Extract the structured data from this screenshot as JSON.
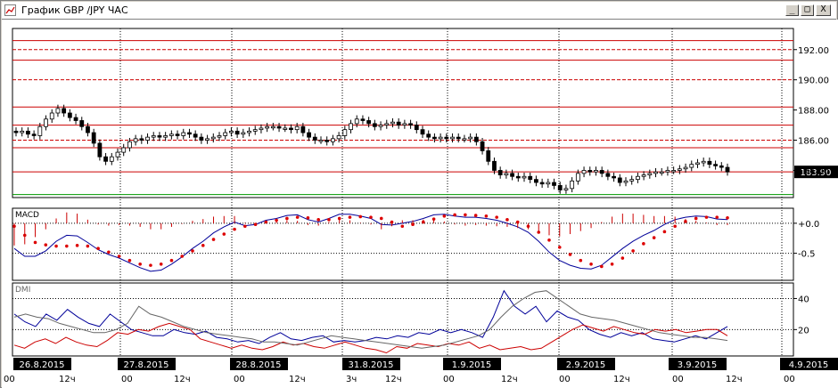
{
  "window": {
    "title": "График GBP /JPY ЧАС",
    "min_label": "_",
    "max_label": "□",
    "close_label": "X"
  },
  "chart_data": [
    {
      "type": "candlestick",
      "panel": "price",
      "ylim": [
        182.2,
        193.4
      ],
      "y_ticks": [
        192,
        190,
        188,
        186,
        184
      ],
      "y_tick_labels": [
        "192.00",
        "190.00",
        "188.00",
        "186.00",
        "184.00"
      ],
      "current_price": 183.9,
      "current_price_label": "183.90",
      "horizontal_levels": [
        {
          "value": 192.6,
          "color": "#cc0000",
          "style": "solid"
        },
        {
          "value": 192.0,
          "color": "#cc0000",
          "style": "dashed"
        },
        {
          "value": 191.3,
          "color": "#cc0000",
          "style": "solid"
        },
        {
          "value": 190.0,
          "color": "#cc0000",
          "style": "dashed"
        },
        {
          "value": 188.2,
          "color": "#cc0000",
          "style": "solid"
        },
        {
          "value": 187.0,
          "color": "#cc0000",
          "style": "solid"
        },
        {
          "value": 186.0,
          "color": "#cc0000",
          "style": "dashed"
        },
        {
          "value": 185.5,
          "color": "#cc0000",
          "style": "solid"
        },
        {
          "value": 183.9,
          "color": "#cc0000",
          "style": "solid"
        },
        {
          "value": 182.4,
          "color": "#009900",
          "style": "solid"
        }
      ],
      "close": [
        186.5,
        186.6,
        186.4,
        186.3,
        186.9,
        187.4,
        187.8,
        188.1,
        187.8,
        187.5,
        187.3,
        186.9,
        186.5,
        185.8,
        184.9,
        184.6,
        184.9,
        185.2,
        185.5,
        185.9,
        186.1,
        186.0,
        186.2,
        186.3,
        186.2,
        186.3,
        186.4,
        186.3,
        186.5,
        186.4,
        186.2,
        186.0,
        186.1,
        186.2,
        186.3,
        186.5,
        186.6,
        186.4,
        186.5,
        186.6,
        186.7,
        186.8,
        186.9,
        186.9,
        186.8,
        186.8,
        186.7,
        186.9,
        186.5,
        186.2,
        186.0,
        186.0,
        185.9,
        186.1,
        186.3,
        186.7,
        187.1,
        187.4,
        187.3,
        187.1,
        186.9,
        187.0,
        187.1,
        187.2,
        187.0,
        187.1,
        187.0,
        186.7,
        186.4,
        186.2,
        186.1,
        186.2,
        186.1,
        186.2,
        186.1,
        186.1,
        186.2,
        185.9,
        185.3,
        184.6,
        184.0,
        183.7,
        183.8,
        183.6,
        183.5,
        183.6,
        183.4,
        183.2,
        183.1,
        183.2,
        183.0,
        182.7,
        182.8,
        183.3,
        183.8,
        184.0,
        183.9,
        184.0,
        183.8,
        183.6,
        183.5,
        183.2,
        183.3,
        183.4,
        183.6,
        183.7,
        183.8,
        183.9,
        183.9,
        184.0,
        184.0,
        184.1,
        184.2,
        184.4,
        184.5,
        184.6,
        184.4,
        184.3,
        184.2,
        183.9
      ],
      "high_offset": 0.25,
      "low_offset": 0.25
    },
    {
      "type": "line",
      "panel": "macd",
      "title": "MACD",
      "ylim": [
        -0.95,
        0.25
      ],
      "y_ticks": [
        0.0,
        -0.5
      ],
      "y_tick_labels": [
        "+0.0",
        "-0.5"
      ],
      "series": [
        {
          "name": "",
          "color": "#000099",
          "style": "line",
          "values": [
            -0.42,
            -0.55,
            -0.55,
            -0.46,
            -0.3,
            -0.2,
            -0.21,
            -0.32,
            -0.44,
            -0.52,
            -0.58,
            -0.66,
            -0.74,
            -0.8,
            -0.78,
            -0.68,
            -0.56,
            -0.42,
            -0.3,
            -0.16,
            -0.06,
            0.02,
            -0.04,
            -0.02,
            0.05,
            0.08,
            0.13,
            0.14,
            0.06,
            0.02,
            0.08,
            0.15,
            0.15,
            0.12,
            0.08,
            -0.02,
            -0.03,
            0.0,
            0.03,
            0.08,
            0.14,
            0.15,
            0.12,
            0.1,
            0.1,
            0.08,
            0.05,
            0.0,
            -0.06,
            -0.15,
            -0.3,
            -0.48,
            -0.62,
            -0.7,
            -0.75,
            -0.76,
            -0.7,
            -0.56,
            -0.42,
            -0.3,
            -0.2,
            -0.12,
            -0.02,
            0.06,
            0.1,
            0.12,
            0.11,
            0.07,
            0.06
          ]
        },
        {
          "name": "",
          "color": "#dd0000",
          "style": "dotted",
          "values": [
            -0.05,
            -0.2,
            -0.32,
            -0.36,
            -0.38,
            -0.38,
            -0.37,
            -0.38,
            -0.42,
            -0.48,
            -0.55,
            -0.62,
            -0.68,
            -0.7,
            -0.68,
            -0.62,
            -0.55,
            -0.46,
            -0.37,
            -0.27,
            -0.18,
            -0.1,
            -0.05,
            -0.02,
            0.02,
            0.05,
            0.08,
            0.1,
            0.09,
            0.06,
            0.06,
            0.08,
            0.1,
            0.11,
            0.1,
            0.08,
            0.02,
            -0.05,
            -0.02,
            0.02,
            0.07,
            0.12,
            0.14,
            0.14,
            0.13,
            0.12,
            0.1,
            0.06,
            0.02,
            -0.05,
            -0.15,
            -0.28,
            -0.4,
            -0.52,
            -0.62,
            -0.68,
            -0.72,
            -0.68,
            -0.58,
            -0.46,
            -0.34,
            -0.24,
            -0.14,
            -0.05,
            0.03,
            0.08,
            0.1,
            0.1,
            0.09
          ]
        },
        {
          "name": "",
          "color": "#cc0000",
          "style": "histogram",
          "values": [
            -0.37,
            -0.35,
            -0.23,
            -0.1,
            0.08,
            0.18,
            0.16,
            0.06,
            -0.02,
            -0.04,
            -0.03,
            -0.04,
            -0.06,
            -0.1,
            -0.1,
            -0.06,
            -0.01,
            0.04,
            0.07,
            0.11,
            0.12,
            0.12,
            0.01,
            0.0,
            0.03,
            0.03,
            0.05,
            0.04,
            -0.03,
            -0.04,
            0.02,
            0.07,
            0.05,
            0.01,
            -0.02,
            -0.1,
            -0.05,
            0.05,
            0.05,
            0.06,
            0.07,
            0.03,
            -0.02,
            -0.04,
            -0.03,
            -0.04,
            -0.05,
            -0.06,
            -0.08,
            -0.1,
            -0.15,
            -0.2,
            -0.22,
            -0.18,
            -0.13,
            -0.08,
            0.02,
            0.11,
            0.16,
            0.16,
            0.14,
            0.12,
            0.12,
            0.11,
            0.07,
            0.04,
            0.01,
            -0.03,
            -0.03
          ]
        }
      ]
    },
    {
      "type": "line",
      "panel": "dmi",
      "title": "DMI",
      "ylim": [
        3,
        50
      ],
      "y_ticks": [
        40,
        20
      ],
      "y_tick_labels": [
        "40",
        "20"
      ],
      "series": [
        {
          "name": "",
          "color": "#000099",
          "values": [
            30,
            25,
            22,
            30,
            26,
            33,
            28,
            24,
            22,
            30,
            25,
            20,
            18,
            16,
            16,
            20,
            18,
            17,
            19,
            15,
            14,
            12,
            13,
            11,
            15,
            18,
            14,
            13,
            15,
            16,
            12,
            13,
            12,
            13,
            15,
            14,
            16,
            15,
            18,
            17,
            20,
            18,
            20,
            18,
            15,
            28,
            45,
            35,
            30,
            35,
            25,
            32,
            28,
            26,
            20,
            17,
            15,
            18,
            16,
            18,
            14,
            13,
            12,
            14,
            16,
            14,
            18,
            22
          ]
        },
        {
          "name": "",
          "color": "#cc0000",
          "values": [
            10,
            8,
            12,
            14,
            11,
            15,
            12,
            10,
            9,
            13,
            18,
            17,
            20,
            19,
            22,
            24,
            22,
            20,
            14,
            12,
            10,
            8,
            10,
            8,
            7,
            9,
            12,
            10,
            11,
            9,
            8,
            10,
            12,
            10,
            8,
            7,
            5,
            9,
            8,
            11,
            10,
            9,
            11,
            10,
            12,
            8,
            10,
            7,
            8,
            9,
            7,
            8,
            12,
            16,
            20,
            23,
            21,
            19,
            22,
            20,
            18,
            17,
            20,
            19,
            20,
            18,
            19,
            20,
            20,
            16
          ]
        },
        {
          "name": "",
          "color": "#666666",
          "values": [
            28,
            30,
            28,
            27,
            24,
            22,
            20,
            18,
            18,
            20,
            24,
            35,
            30,
            28,
            25,
            22,
            20,
            18,
            17,
            16,
            15,
            14,
            12,
            12,
            11,
            10,
            12,
            14,
            16,
            15,
            14,
            13,
            12,
            11,
            10,
            9,
            8,
            9,
            10,
            12,
            14,
            16,
            20,
            28,
            35,
            40,
            44,
            45,
            40,
            35,
            30,
            28,
            27,
            26,
            24,
            22,
            20,
            18,
            17,
            16,
            15,
            15,
            14,
            13
          ]
        }
      ]
    }
  ],
  "time_axis": {
    "date_labels": [
      "26.8.2015",
      "27.8.2015",
      "28.8.2015",
      "31.8.2015",
      "1.9.2015",
      "2.9.2015",
      "3.9.2015",
      "4.9.2015"
    ],
    "hour_labels": [
      "00",
      "12ч",
      "00",
      "12ч",
      "00",
      "12ч",
      "3ч",
      "12ч",
      "00",
      "12ч",
      "00",
      "12ч",
      "00",
      "12ч",
      "00"
    ]
  }
}
